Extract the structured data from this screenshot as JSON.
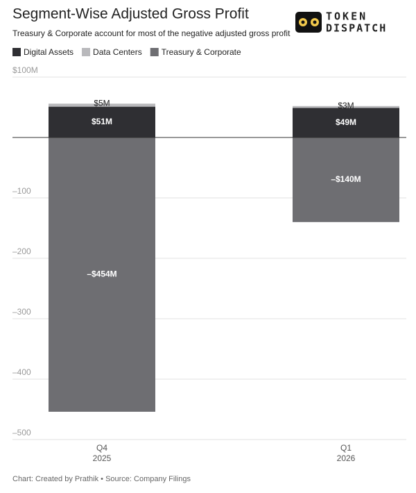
{
  "chart_data": {
    "type": "stacked-bar",
    "title": "Segment-Wise Adjusted Gross Profit",
    "subtitle": "Treasury & Corporate account for most of the negative adjusted gross profit",
    "source": "Chart: Created by Prathik • Source: Company Filings",
    "logo": [
      "TOKEN",
      "DISPATCH"
    ],
    "categories": [
      [
        "Q4",
        "2025"
      ],
      [
        "Q1",
        "2026"
      ]
    ],
    "series": [
      {
        "name": "Digital Assets",
        "color": "#2f2f33",
        "values": [
          51,
          49
        ],
        "value_labels": [
          "$51M",
          "$49M"
        ]
      },
      {
        "name": "Data Centers",
        "color": "#b9b9bc",
        "values": [
          5,
          3
        ],
        "value_labels": [
          "$5M",
          "$3M"
        ]
      },
      {
        "name": "Treasury & Corporate",
        "color": "#6e6e72",
        "values": [
          -454,
          -140
        ],
        "value_labels": [
          "–$454M",
          "–$140M"
        ]
      }
    ],
    "ylim": [
      -500,
      100
    ],
    "yticks": [
      {
        "value": 100,
        "label": "$100M"
      },
      {
        "value": -100,
        "label": "–100"
      },
      {
        "value": -200,
        "label": "–200"
      },
      {
        "value": -300,
        "label": "–300"
      },
      {
        "value": -400,
        "label": "–400"
      },
      {
        "value": -500,
        "label": "–500"
      }
    ],
    "grid": true,
    "legend": "top-left"
  }
}
